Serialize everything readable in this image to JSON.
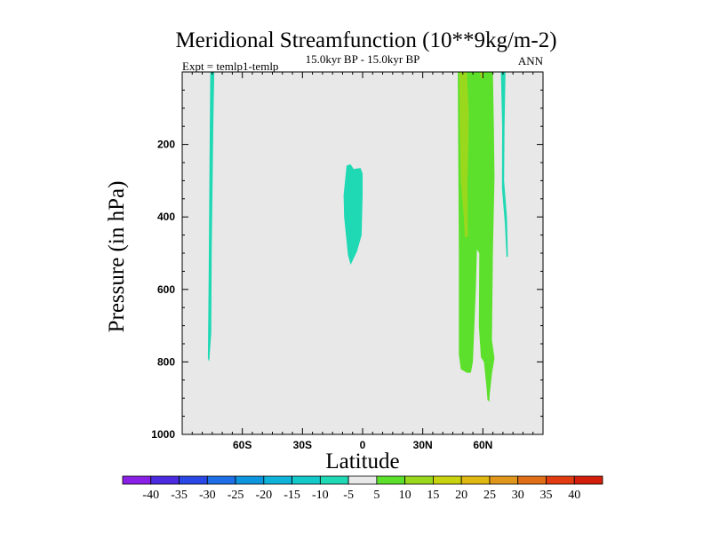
{
  "chart_data": {
    "type": "contour",
    "title": "Meridional Streamfunction (10**9kg/m-2)",
    "subtitle_left": "Expt = temlp1-temlp",
    "subtitle_center": "15.0kyr BP - 15.0kyr BP",
    "subtitle_right": "ANN",
    "xlabel": "Latitude",
    "ylabel": "Pressure (in hPa)",
    "xlim": [
      -90,
      90
    ],
    "ylim": [
      1000,
      0
    ],
    "x_ticks": [
      {
        "value": -60,
        "label": "60S"
      },
      {
        "value": -30,
        "label": "30S"
      },
      {
        "value": 0,
        "label": "0"
      },
      {
        "value": 30,
        "label": "30N"
      },
      {
        "value": 60,
        "label": "60N"
      }
    ],
    "y_ticks": [
      {
        "value": 200,
        "label": "200"
      },
      {
        "value": 400,
        "label": "400"
      },
      {
        "value": 600,
        "label": "600"
      },
      {
        "value": 800,
        "label": "800"
      },
      {
        "value": 1000,
        "label": "1000"
      }
    ],
    "background_color": "#e8e8e8",
    "colorbar": {
      "labels": [
        "-40",
        "-35",
        "-30",
        "-25",
        "-20",
        "-15",
        "-10",
        "-5",
        "5",
        "10",
        "15",
        "20",
        "25",
        "30",
        "35",
        "40"
      ],
      "colors": [
        "#8a1fe6",
        "#4a2be0",
        "#2a48e6",
        "#1e6fe6",
        "#0e95e0",
        "#0fb2d8",
        "#13c9c9",
        "#1ed9b4",
        "#e8e8e8",
        "#5ce02c",
        "#9ad81e",
        "#c9d20e",
        "#e0b812",
        "#e0961a",
        "#e06e16",
        "#e03c10",
        "#d21e0a"
      ]
    },
    "regions": [
      {
        "name": "cyan-band-south",
        "level": "-10 to -5",
        "color": "#1ed9b4",
        "polygon": [
          [
            -76,
            0
          ],
          [
            -74,
            0
          ],
          [
            -74.5,
            150
          ],
          [
            -75.3,
            500
          ],
          [
            -75.5,
            720
          ],
          [
            -76.5,
            800
          ],
          [
            -77.2,
            790
          ],
          [
            -76.8,
            560
          ],
          [
            -76.3,
            200
          ]
        ]
      },
      {
        "name": "cyan-blob-equator",
        "level": "-10 to -5",
        "color": "#1ed9b4",
        "polygon": [
          [
            -8,
            258
          ],
          [
            -6,
            255
          ],
          [
            -4.5,
            268
          ],
          [
            -1,
            265
          ],
          [
            0,
            280
          ],
          [
            0,
            340
          ],
          [
            -0.5,
            450
          ],
          [
            -2.8,
            495
          ],
          [
            -6,
            532
          ],
          [
            -7.3,
            505
          ],
          [
            -9.2,
            400
          ],
          [
            -9.5,
            340
          ]
        ]
      },
      {
        "name": "green-band-north",
        "level": "5 to 10",
        "color": "#5ce02c",
        "polygon": [
          [
            47.5,
            0
          ],
          [
            65,
            0
          ],
          [
            65.5,
            150
          ],
          [
            65.8,
            290
          ],
          [
            65,
            500
          ],
          [
            64.5,
            740
          ],
          [
            65.8,
            790
          ],
          [
            64.6,
            830
          ],
          [
            63.4,
            890
          ],
          [
            63.2,
            910
          ],
          [
            62.3,
            905
          ],
          [
            61.8,
            870
          ],
          [
            60.5,
            800
          ],
          [
            59,
            787
          ],
          [
            58,
            700
          ],
          [
            58.2,
            500
          ],
          [
            57,
            490
          ],
          [
            56.5,
            600
          ],
          [
            55,
            800
          ],
          [
            54,
            830
          ],
          [
            52,
            830
          ],
          [
            49,
            820
          ],
          [
            48,
            780
          ],
          [
            48,
            500
          ],
          [
            47.8,
            300
          ],
          [
            47.6,
            150
          ]
        ]
      },
      {
        "name": "yellow-green-core-a",
        "level": "10 to 15",
        "color": "#9ad81e",
        "polygon": [
          [
            48.3,
            0
          ],
          [
            52,
            0
          ],
          [
            53,
            110
          ],
          [
            52.8,
            200
          ],
          [
            52.3,
            300
          ],
          [
            52.5,
            455
          ],
          [
            51,
            455
          ],
          [
            50.5,
            400
          ],
          [
            49,
            300
          ],
          [
            48.5,
            150
          ]
        ]
      },
      {
        "name": "yellow-green-core-b",
        "level": "10 to 15",
        "color": "#9ad81e",
        "polygon": [
          [
            58.5,
            0
          ],
          [
            60.5,
            0
          ],
          [
            60.2,
            18
          ],
          [
            59,
            18
          ]
        ]
      },
      {
        "name": "cyan-band-north",
        "level": "-10 to -5",
        "color": "#1ed9b4",
        "polygon": [
          [
            69,
            0
          ],
          [
            71.3,
            0
          ],
          [
            70.8,
            150
          ],
          [
            70.6,
            300
          ],
          [
            72,
            400
          ],
          [
            72.5,
            510
          ],
          [
            71.8,
            510
          ],
          [
            71,
            420
          ],
          [
            69.5,
            320
          ],
          [
            69.6,
            150
          ]
        ]
      }
    ]
  }
}
